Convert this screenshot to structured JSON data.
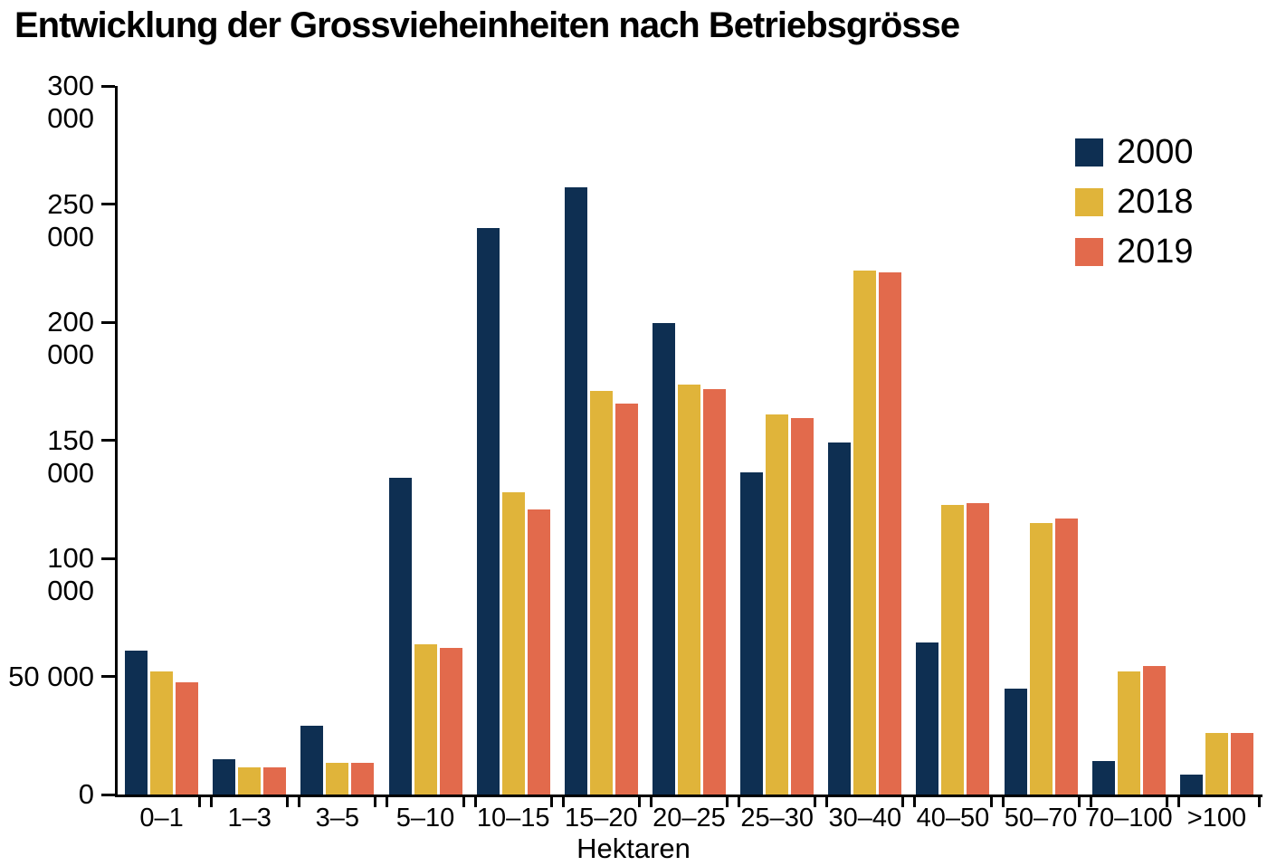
{
  "title": "Entwicklung der Grossvieheinheiten nach Betriebsgrösse",
  "chart_data": {
    "type": "bar",
    "title": "Entwicklung der Grossvieheinheiten nach Betriebsgrösse",
    "xlabel": "Hektaren",
    "ylabel": "",
    "ylim": [
      0,
      300000
    ],
    "yticks": [
      0,
      50000,
      100000,
      150000,
      200000,
      250000,
      300000
    ],
    "ytick_labels": [
      "0",
      "50 000",
      "100 000",
      "150 000",
      "200 000",
      "250 000",
      "300 000"
    ],
    "categories": [
      "0–1",
      "1–3",
      "3–5",
      "5–10",
      "10–15",
      "15–20",
      "20–25",
      "25–30",
      "30–40",
      "40–50",
      "50–70",
      "70–100",
      ">100"
    ],
    "grid": false,
    "legend_position": "top-right",
    "series": [
      {
        "name": "2000",
        "color": "#0e2f52",
        "values": [
          61000,
          15000,
          29000,
          134000,
          240000,
          257000,
          199500,
          136500,
          149000,
          64500,
          45000,
          14000,
          8500
        ]
      },
      {
        "name": "2018",
        "color": "#e0b43a",
        "values": [
          52000,
          11500,
          13500,
          63500,
          128000,
          171000,
          173500,
          161000,
          222000,
          122500,
          115000,
          52000,
          26000
        ]
      },
      {
        "name": "2019",
        "color": "#e26a4c",
        "values": [
          47500,
          11500,
          13500,
          62000,
          120500,
          165500,
          171500,
          159500,
          221000,
          123500,
          117000,
          54500,
          26000
        ]
      }
    ]
  }
}
